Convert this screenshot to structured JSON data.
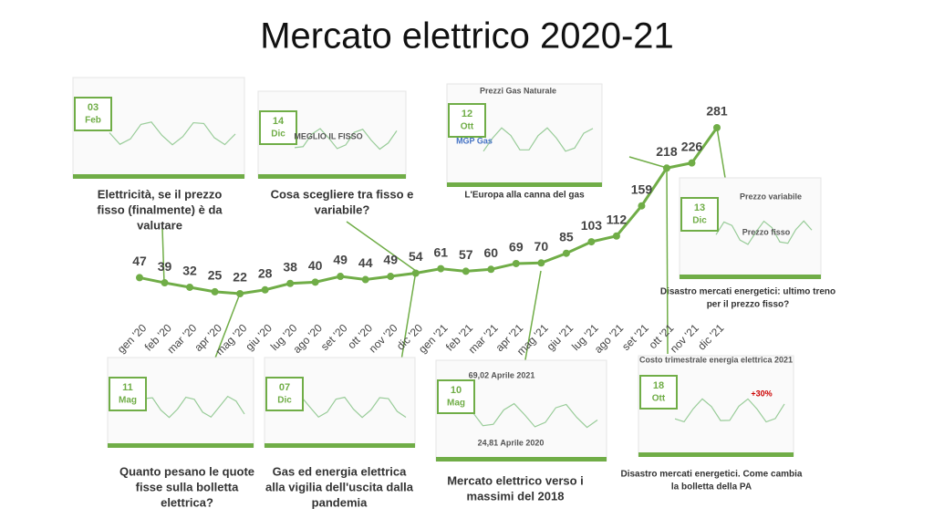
{
  "chart_data": {
    "type": "line",
    "title": "Mercato elettrico 2020-21",
    "categories": [
      "gen '20",
      "feb '20",
      "mar '20",
      "apr '20",
      "mag '20",
      "giu '20",
      "lug '20",
      "ago '20",
      "set '20",
      "ott '20",
      "nov '20",
      "dic '20",
      "gen '21",
      "feb '21",
      "mar '21",
      "apr '21",
      "mag '21",
      "giu '21",
      "lug '21",
      "ago '21",
      "set '21",
      "ott '21",
      "nov '21",
      "dic '21"
    ],
    "values": [
      47,
      39,
      32,
      25,
      22,
      28,
      38,
      40,
      49,
      44,
      49,
      54,
      61,
      57,
      60,
      69,
      70,
      85,
      103,
      112,
      159,
      218,
      226,
      281
    ],
    "color": "#70ad47",
    "annotations": [
      {
        "badge_day": "03",
        "badge_month": "Feb",
        "caption": [
          "Elettricità, se il prezzo",
          "fisso (finalmente) è da",
          "valutare"
        ],
        "inner_texts": []
      },
      {
        "badge_day": "14",
        "badge_month": "Dic",
        "caption": [
          "Cosa scegliere tra fisso e",
          "variabile?"
        ],
        "inner_texts": [
          "MEGLIO IL FISSO"
        ]
      },
      {
        "badge_day": "12",
        "badge_month": "Ott",
        "caption": [
          "L'Europa alla canna del gas"
        ],
        "inner_texts": [
          "Prezzi Gas Naturale",
          "MGP Gas"
        ]
      },
      {
        "badge_day": "13",
        "badge_month": "Dic",
        "caption": [
          "Disastro mercati energetici: ultimo treno",
          "per il prezzo fisso?"
        ],
        "inner_texts": [
          "Prezzo variabile",
          "Prezzo fisso"
        ]
      },
      {
        "badge_day": "11",
        "badge_month": "Mag",
        "caption": [
          "Quanto pesano le quote",
          "fisse sulla bolletta",
          "elettrica?"
        ],
        "inner_texts": []
      },
      {
        "badge_day": "07",
        "badge_month": "Dic",
        "caption": [
          "Gas ed energia elettrica",
          "alla vigilia dell'uscita dalla",
          "pandemia"
        ],
        "inner_texts": []
      },
      {
        "badge_day": "10",
        "badge_month": "Mag",
        "caption": [
          "Mercato elettrico verso i",
          "massimi del 2018"
        ],
        "inner_texts": [
          "69,02 Aprile 2021",
          "24,81 Aprile 2020"
        ]
      },
      {
        "badge_day": "18",
        "badge_month": "Ott",
        "caption": [
          "Disastro mercati energetici. Come cambia",
          "la bolletta della PA"
        ],
        "inner_texts": [
          "Costo trimestrale energia elettrica 2021",
          "+30%"
        ]
      }
    ]
  }
}
